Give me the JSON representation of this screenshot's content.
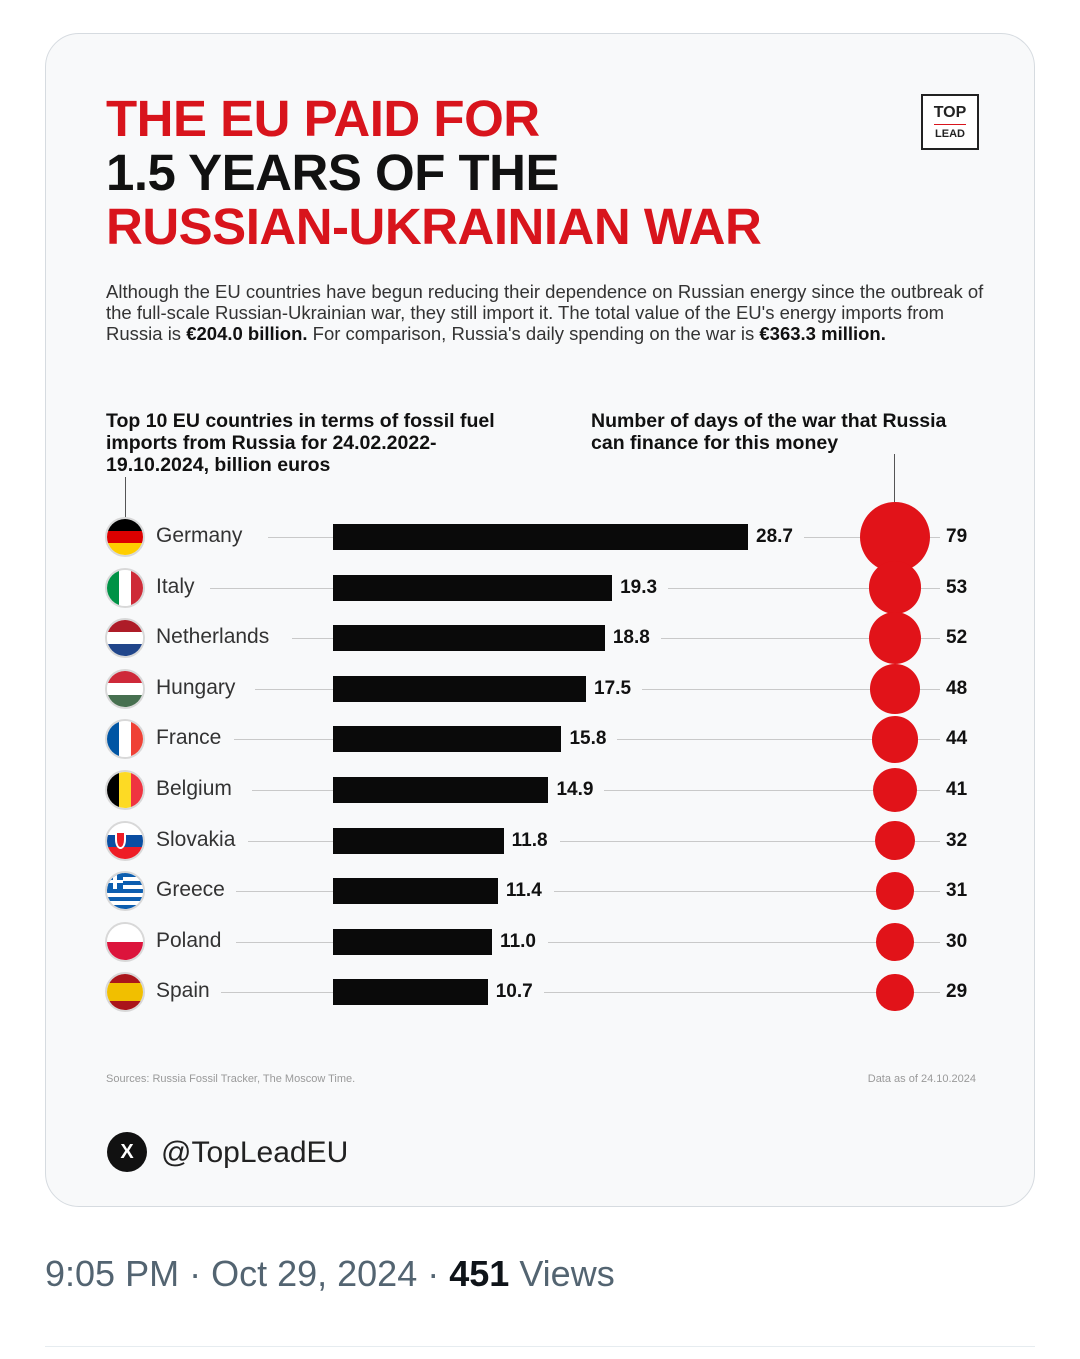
{
  "title": {
    "line1": "THE EU PAID FOR",
    "line2": "1.5 YEARS OF THE",
    "line3": "RUSSIAN-UKRAINIAN WAR"
  },
  "logo": {
    "line1": "TOP",
    "line2": "LEAD"
  },
  "intro": {
    "text_a": "Although the EU countries have begun reducing their dependence on Russian energy since the outbreak of the full-scale Russian-Ukrainian war, they still import it. The total value of the EU's energy imports from Russia is ",
    "total": "€204.0 billion.",
    "text_b": " For comparison, Russia's daily spending on the war is ",
    "daily": "€363.3 million."
  },
  "chart_data": {
    "type": "bar",
    "title": "Top 10 EU countries in terms of fossil fuel imports from Russia for 24.02.2022-19.10.2024, billion euros",
    "secondary_title": "Number of days of the war that Russia can finance for this money",
    "categories": [
      "Germany",
      "Italy",
      "Netherlands",
      "Hungary",
      "France",
      "Belgium",
      "Slovakia",
      "Greece",
      "Poland",
      "Spain"
    ],
    "series": [
      {
        "name": "Imports, billion euros",
        "values": [
          28.7,
          19.3,
          18.8,
          17.5,
          15.8,
          14.9,
          11.8,
          11.4,
          11.0,
          10.7
        ],
        "labels": [
          "28.7",
          "19.3",
          "18.8",
          "17.5",
          "15.8",
          "14.9",
          "11.8",
          "11.4",
          "11.0",
          "10.7"
        ]
      },
      {
        "name": "Days of war financed",
        "values": [
          79,
          53,
          52,
          48,
          44,
          41,
          32,
          31,
          30,
          29
        ]
      }
    ],
    "xlabel": "",
    "ylabel": "",
    "bar_color": "#0a0a0a",
    "bubble_color": "#e11319"
  },
  "sources": "Sources: Russia Fossil Tracker, The Moscow Time.",
  "data_as_of": "Data as of 24.10.2024",
  "handle": "@TopLeadEU",
  "x_logo": "X",
  "tweet_meta": {
    "time": "9:05 PM",
    "date": "Oct 29, 2024",
    "views_count": "451",
    "views_label": "Views"
  }
}
